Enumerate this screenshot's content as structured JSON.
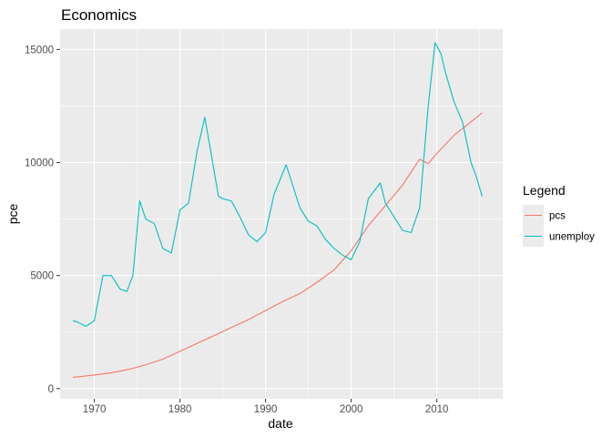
{
  "chart_data": {
    "type": "line",
    "title": "Economics",
    "xlabel": "date",
    "ylabel": "pce",
    "x_ticks": [
      1970,
      1980,
      1990,
      2000,
      2010
    ],
    "y_ticks": [
      0,
      5000,
      10000,
      15000
    ],
    "y_tick_labels": [
      "0",
      "5000",
      "10000",
      "15000"
    ],
    "xlim": [
      1966.0,
      2017.7
    ],
    "ylim": [
      -450,
      15900
    ],
    "grid": true,
    "background": "#ebebeb",
    "legend": {
      "title": "Legend",
      "position": "right"
    },
    "series": [
      {
        "name": "pcs",
        "color": "#f8766d",
        "points": [
          [
            1967.5,
            500
          ],
          [
            1970,
            600
          ],
          [
            1972,
            700
          ],
          [
            1974,
            850
          ],
          [
            1976,
            1050
          ],
          [
            1978,
            1300
          ],
          [
            1980,
            1650
          ],
          [
            1982,
            2000
          ],
          [
            1984,
            2350
          ],
          [
            1986,
            2700
          ],
          [
            1988,
            3050
          ],
          [
            1990,
            3450
          ],
          [
            1992,
            3850
          ],
          [
            1994,
            4200
          ],
          [
            1996,
            4700
          ],
          [
            1998,
            5250
          ],
          [
            2000,
            6100
          ],
          [
            2002,
            7200
          ],
          [
            2004,
            8100
          ],
          [
            2006,
            9000
          ],
          [
            2008,
            10150
          ],
          [
            2009,
            9950
          ],
          [
            2010,
            10400
          ],
          [
            2012,
            11200
          ],
          [
            2014,
            11800
          ],
          [
            2015.3,
            12200
          ]
        ]
      },
      {
        "name": "unemploy",
        "color": "#00bfc4",
        "points": [
          [
            1967.5,
            3000
          ],
          [
            1968,
            2950
          ],
          [
            1969,
            2750
          ],
          [
            1970,
            3000
          ],
          [
            1970.5,
            4000
          ],
          [
            1971,
            5000
          ],
          [
            1972,
            5000
          ],
          [
            1973,
            4400
          ],
          [
            1973.8,
            4300
          ],
          [
            1974.5,
            5000
          ],
          [
            1975.3,
            8300
          ],
          [
            1976,
            7500
          ],
          [
            1977,
            7300
          ],
          [
            1978,
            6200
          ],
          [
            1979,
            6000
          ],
          [
            1980,
            7900
          ],
          [
            1981,
            8200
          ],
          [
            1982,
            10500
          ],
          [
            1982.9,
            12000
          ],
          [
            1983.5,
            10700
          ],
          [
            1984.5,
            8500
          ],
          [
            1985,
            8400
          ],
          [
            1986,
            8300
          ],
          [
            1987,
            7600
          ],
          [
            1988,
            6800
          ],
          [
            1989,
            6500
          ],
          [
            1990,
            6900
          ],
          [
            1991,
            8600
          ],
          [
            1992.4,
            9900
          ],
          [
            1993,
            9200
          ],
          [
            1994,
            8000
          ],
          [
            1995,
            7400
          ],
          [
            1996,
            7200
          ],
          [
            1997,
            6600
          ],
          [
            1998,
            6200
          ],
          [
            1999,
            5900
          ],
          [
            2000,
            5700
          ],
          [
            2001,
            6500
          ],
          [
            2002,
            8400
          ],
          [
            2003.4,
            9100
          ],
          [
            2004,
            8200
          ],
          [
            2005,
            7600
          ],
          [
            2006,
            7000
          ],
          [
            2007,
            6900
          ],
          [
            2008,
            8000
          ],
          [
            2009,
            12500
          ],
          [
            2009.8,
            15300
          ],
          [
            2010.5,
            14800
          ],
          [
            2011,
            14000
          ],
          [
            2012,
            12700
          ],
          [
            2013,
            11800
          ],
          [
            2014,
            10000
          ],
          [
            2014.6,
            9400
          ],
          [
            2015.3,
            8500
          ]
        ]
      }
    ]
  }
}
